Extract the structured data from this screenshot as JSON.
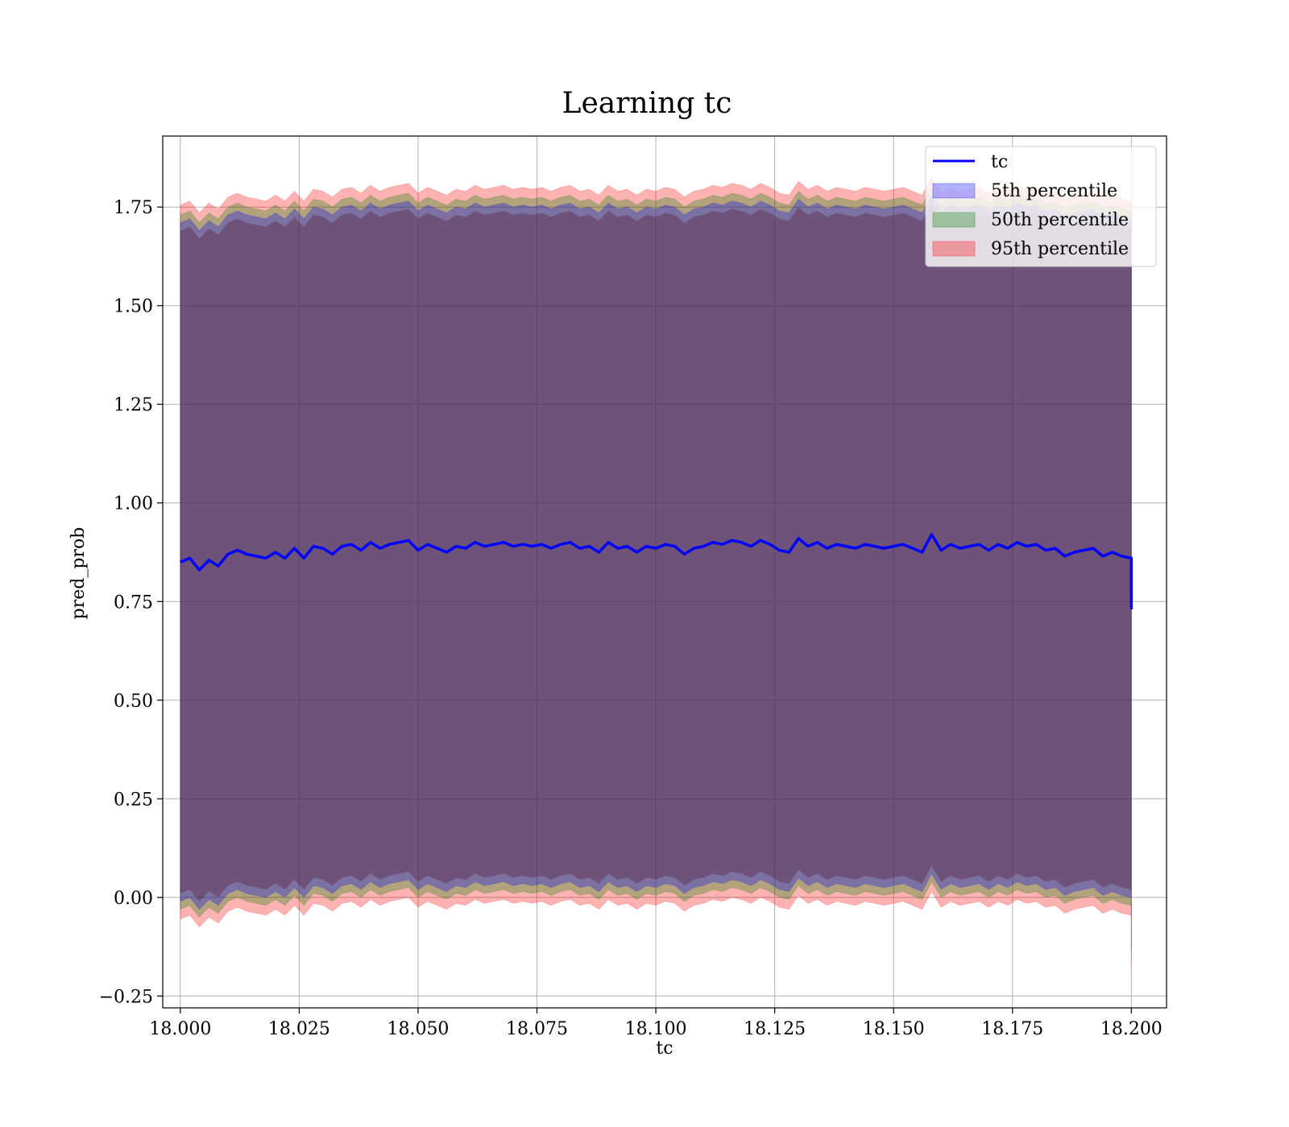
{
  "chart_data": {
    "type": "area",
    "title": "Learning tc",
    "xlabel": "tc",
    "ylabel": "pred_prob",
    "xlim": [
      17.9963,
      18.2074
    ],
    "ylim": [
      -0.28,
      1.93
    ],
    "x_ticks": [
      18.0,
      18.025,
      18.05,
      18.075,
      18.1,
      18.125,
      18.15,
      18.175,
      18.2
    ],
    "x_tick_labels": [
      "18.000",
      "18.025",
      "18.050",
      "18.075",
      "18.100",
      "18.125",
      "18.150",
      "18.175",
      "18.200"
    ],
    "y_ticks": [
      -0.25,
      0.0,
      0.25,
      0.5,
      0.75,
      1.0,
      1.25,
      1.5,
      1.75
    ],
    "y_tick_labels": [
      "−0.25",
      "0.00",
      "0.25",
      "0.50",
      "0.75",
      "1.00",
      "1.25",
      "1.50",
      "1.75"
    ],
    "grid": true,
    "legend_position": "top-right",
    "line_series": {
      "name": "tc",
      "color": "#0000ff",
      "x": [
        18.0,
        18.002,
        18.004,
        18.006,
        18.008,
        18.01,
        18.012,
        18.014,
        18.016,
        18.018,
        18.02,
        18.022,
        18.024,
        18.026,
        18.028,
        18.03,
        18.032,
        18.034,
        18.036,
        18.038,
        18.04,
        18.042,
        18.044,
        18.046,
        18.048,
        18.05,
        18.052,
        18.054,
        18.056,
        18.058,
        18.06,
        18.062,
        18.064,
        18.066,
        18.068,
        18.07,
        18.072,
        18.074,
        18.076,
        18.078,
        18.08,
        18.082,
        18.084,
        18.086,
        18.088,
        18.09,
        18.092,
        18.094,
        18.096,
        18.098,
        18.1,
        18.102,
        18.104,
        18.106,
        18.108,
        18.11,
        18.112,
        18.114,
        18.116,
        18.118,
        18.12,
        18.122,
        18.124,
        18.126,
        18.128,
        18.13,
        18.132,
        18.134,
        18.136,
        18.138,
        18.14,
        18.142,
        18.144,
        18.146,
        18.148,
        18.15,
        18.152,
        18.154,
        18.156,
        18.158,
        18.16,
        18.162,
        18.164,
        18.166,
        18.168,
        18.17,
        18.172,
        18.174,
        18.176,
        18.178,
        18.18,
        18.182,
        18.184,
        18.186,
        18.188,
        18.19,
        18.192,
        18.194,
        18.196,
        18.198,
        18.2,
        18.2
      ],
      "y": [
        0.85,
        0.86,
        0.83,
        0.855,
        0.84,
        0.87,
        0.88,
        0.87,
        0.865,
        0.86,
        0.875,
        0.86,
        0.885,
        0.86,
        0.89,
        0.885,
        0.87,
        0.89,
        0.895,
        0.88,
        0.9,
        0.885,
        0.895,
        0.9,
        0.905,
        0.88,
        0.895,
        0.885,
        0.875,
        0.89,
        0.885,
        0.9,
        0.89,
        0.895,
        0.9,
        0.89,
        0.895,
        0.89,
        0.895,
        0.885,
        0.895,
        0.9,
        0.885,
        0.89,
        0.875,
        0.9,
        0.885,
        0.89,
        0.875,
        0.89,
        0.885,
        0.895,
        0.89,
        0.87,
        0.885,
        0.89,
        0.9,
        0.895,
        0.905,
        0.9,
        0.89,
        0.905,
        0.895,
        0.88,
        0.875,
        0.91,
        0.89,
        0.9,
        0.885,
        0.895,
        0.89,
        0.885,
        0.895,
        0.89,
        0.885,
        0.89,
        0.895,
        0.885,
        0.875,
        0.92,
        0.88,
        0.895,
        0.885,
        0.89,
        0.895,
        0.88,
        0.895,
        0.885,
        0.9,
        0.89,
        0.895,
        0.88,
        0.885,
        0.865,
        0.875,
        0.88,
        0.885,
        0.865,
        0.875,
        0.865,
        0.86,
        0.73
      ]
    },
    "band_series": [
      {
        "name": "5th percentile",
        "color": "#0000ff",
        "opacity": 0.3,
        "half_width": 0.86
      },
      {
        "name": "50th percentile",
        "color": "#008000",
        "opacity": 0.3,
        "half_width": 0.88
      },
      {
        "name": "95th percentile",
        "color": "#ff0000",
        "opacity": 0.3,
        "half_width": 0.905
      }
    ]
  }
}
